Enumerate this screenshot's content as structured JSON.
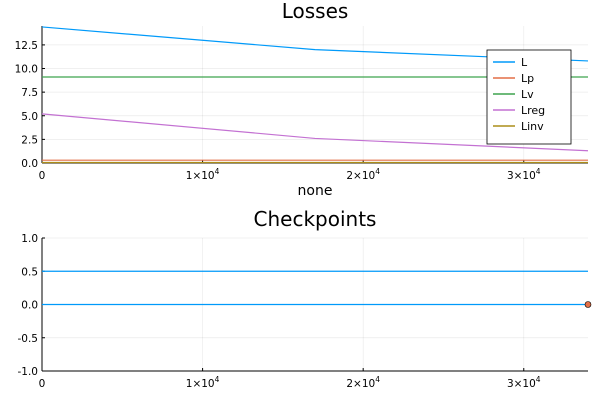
{
  "chart_data": [
    {
      "type": "line",
      "title": "Losses",
      "xlabel": "none",
      "ylabel": "",
      "xlim": [
        0,
        34000
      ],
      "ylim": [
        0,
        14.5
      ],
      "x_ticks": [
        0,
        10000,
        20000,
        30000
      ],
      "x_tick_labels": [
        {
          "base": "0",
          "exp": ""
        },
        {
          "base": "1×10",
          "exp": "4"
        },
        {
          "base": "2×10",
          "exp": "4"
        },
        {
          "base": "3×10",
          "exp": "4"
        }
      ],
      "y_ticks": [
        0,
        2.5,
        5.0,
        7.5,
        10.0,
        12.5
      ],
      "y_tick_labels": [
        "0.0",
        "2.5",
        "5.0",
        "7.5",
        "10.0",
        "12.5"
      ],
      "grid": true,
      "legend_position": "top-right",
      "series": [
        {
          "name": "L",
          "color": "#009AFA",
          "x": [
            0,
            17000,
            34000
          ],
          "values": [
            14.4,
            12.0,
            10.8
          ]
        },
        {
          "name": "Lp",
          "color": "#E36F47",
          "x": [
            0,
            17000,
            34000
          ],
          "values": [
            0.3,
            0.3,
            0.3
          ]
        },
        {
          "name": "Lv",
          "color": "#3EA44E",
          "x": [
            0,
            17000,
            34000
          ],
          "values": [
            9.1,
            9.1,
            9.1
          ]
        },
        {
          "name": "Lreg",
          "color": "#C371D2",
          "x": [
            0,
            17000,
            34000
          ],
          "values": [
            5.2,
            2.6,
            1.3
          ]
        },
        {
          "name": "Linv",
          "color": "#AC8D18",
          "x": [
            0,
            17000,
            34000
          ],
          "values": [
            0.05,
            0.05,
            0.05
          ]
        }
      ]
    },
    {
      "type": "line",
      "title": "Checkpoints",
      "xlabel": "",
      "ylabel": "",
      "xlim": [
        0,
        34000
      ],
      "ylim": [
        -1.0,
        1.0
      ],
      "x_ticks": [
        0,
        10000,
        20000,
        30000
      ],
      "x_tick_labels": [
        {
          "base": "0",
          "exp": ""
        },
        {
          "base": "1×10",
          "exp": "4"
        },
        {
          "base": "2×10",
          "exp": "4"
        },
        {
          "base": "3×10",
          "exp": "4"
        }
      ],
      "y_ticks": [
        -1.0,
        -0.5,
        0.0,
        0.5,
        1.0
      ],
      "y_tick_labels": [
        "-1.0",
        "-0.5",
        "0.0",
        "0.5",
        "1.0"
      ],
      "grid": true,
      "series": [
        {
          "color": "#009AFA",
          "x": [
            0,
            34000
          ],
          "values": [
            0.5,
            0.5
          ]
        },
        {
          "color": "#009AFA",
          "x": [
            0,
            34000
          ],
          "values": [
            0.0,
            0.0
          ]
        }
      ],
      "markers": [
        {
          "x": 34000,
          "y": 0.0,
          "color": "#E36F47"
        }
      ]
    }
  ]
}
